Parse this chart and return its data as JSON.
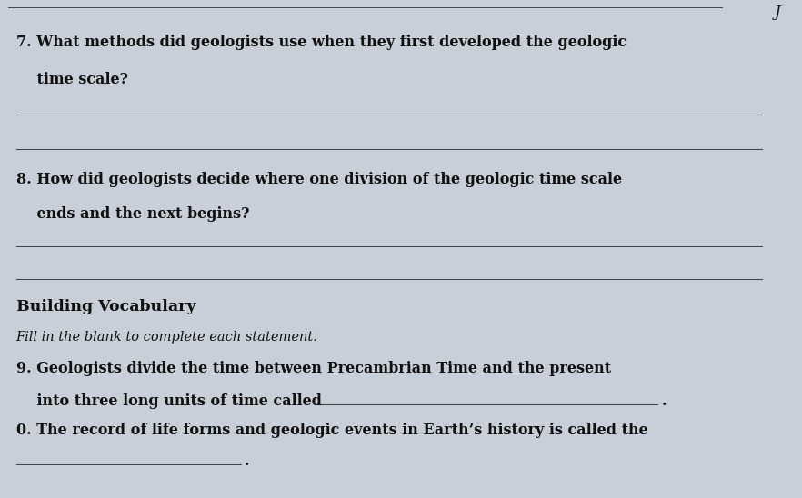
{
  "bg_color": "#c8cfd8",
  "paper_color": "#dde4ed",
  "text_color": "#111111",
  "line_color": "#444444",
  "corner_letter": "J",
  "font_size_question": 11.5,
  "font_size_section_title": 12.5,
  "font_size_subtitle": 10.5,
  "font_size_vocab": 11.5,
  "q7_text1": "7. What methods did geologists use when they first developed the geologic",
  "q7_text2": "    time scale?",
  "q8_text1": "8. How did geologists decide where one division of the geologic time scale",
  "q8_text2": "    ends and the next begins?",
  "section_title": "Building Vocabulary",
  "section_subtitle": "Fill in the blank to complete each statement.",
  "q9_text1": "9. Geologists divide the time between Precambrian Time and the present",
  "q9_text2": "    into three long units of time called",
  "q10_text1": "0. The record of life forms and geologic events in Earth’s history is called the"
}
